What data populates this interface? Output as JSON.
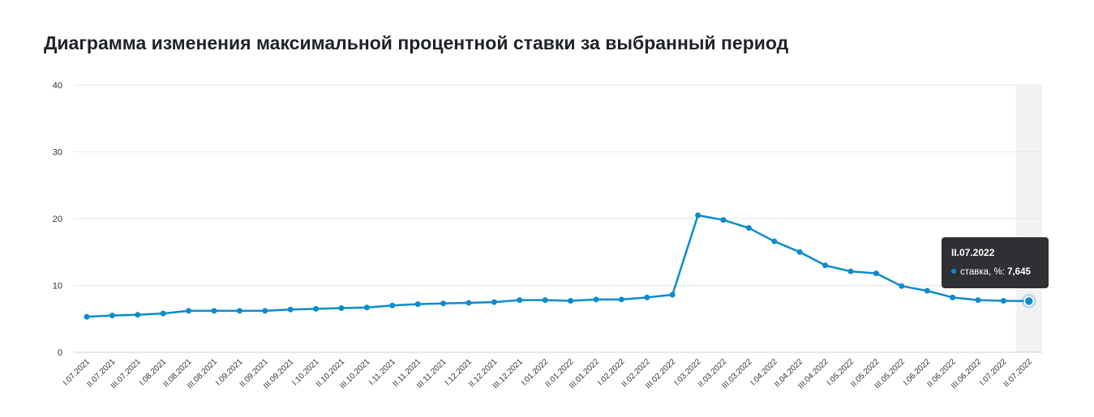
{
  "page": {
    "title": "Диаграмма изменения максимальной процентной ставки за выбранный период"
  },
  "colors": {
    "line": "#0a8ccc",
    "grid": "#e6e6e6",
    "highlight_band": "#f2f2f2",
    "tooltip_bg": "#2f3034"
  },
  "chart_data": {
    "type": "line",
    "title": "",
    "xlabel": "",
    "ylabel": "",
    "ylim": [
      0,
      40
    ],
    "yticks": [
      0,
      10,
      20,
      30,
      40
    ],
    "grid": true,
    "categories": [
      "I.07.2021",
      "II.07.2021",
      "III.07.2021",
      "I.08.2021",
      "II.08.2021",
      "III.08.2021",
      "I.09.2021",
      "II.09.2021",
      "III.09.2021",
      "I.10.2021",
      "II.10.2021",
      "III.10.2021",
      "I.11.2021",
      "II.11.2021",
      "III.11.2021",
      "I.12.2021",
      "II.12.2021",
      "III.12.2021",
      "I.01.2022",
      "II.01.2022",
      "III.01.2022",
      "I.02.2022",
      "II.02.2022",
      "III.02.2022",
      "I.03.2022",
      "II.03.2022",
      "III.03.2022",
      "I.04.2022",
      "II.04.2022",
      "III.04.2022",
      "I.05.2022",
      "II.05.2022",
      "III.05.2022",
      "I.06.2022",
      "II.06.2022",
      "III.06.2022",
      "I.07.2022",
      "II.07.2022"
    ],
    "series": [
      {
        "name": "ставка, %",
        "values": [
          5.3,
          5.5,
          5.6,
          5.8,
          6.2,
          6.2,
          6.2,
          6.2,
          6.4,
          6.5,
          6.6,
          6.7,
          7.0,
          7.2,
          7.3,
          7.4,
          7.5,
          7.8,
          7.8,
          7.7,
          7.9,
          7.9,
          8.2,
          8.6,
          20.5,
          19.8,
          18.6,
          16.6,
          15.0,
          13.0,
          12.1,
          11.8,
          9.9,
          9.2,
          8.2,
          7.8,
          7.7,
          7.645
        ]
      }
    ],
    "highlight_index": 37
  },
  "tooltip": {
    "header": "II.07.2022",
    "series_label": "ставка, %:",
    "value": "7,645"
  }
}
